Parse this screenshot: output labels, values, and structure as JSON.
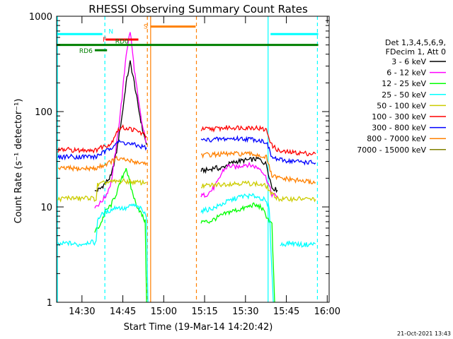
{
  "chart_data": {
    "type": "line",
    "title": "RHESSI Observing Summary Count Rates",
    "xlabel": "Start Time (19-Mar-14 14:20:42)",
    "ylabel": "Count Rate (s⁻¹ detector⁻¹)",
    "y_scale": "log",
    "ylim": [
      1,
      1000
    ],
    "xlim_minutes": [
      0,
      100
    ],
    "x_ticks": [
      {
        "label": "14:30",
        "min": 9.3
      },
      {
        "label": "14:45",
        "min": 24.3
      },
      {
        "label": "15:00",
        "min": 39.3
      },
      {
        "label": "15:15",
        "min": 54.3
      },
      {
        "label": "15:30",
        "min": 69.3
      },
      {
        "label": "15:45",
        "min": 84.3
      },
      {
        "label": "16:00",
        "min": 99.3
      }
    ],
    "y_ticks": [
      {
        "label": "1",
        "value": 1
      },
      {
        "label": "10",
        "value": 10
      },
      {
        "label": "100",
        "value": 100
      },
      {
        "label": "1000",
        "value": 1000
      }
    ],
    "legend": {
      "header": [
        "Det 1,3,4,5,6,9,",
        "FDecim 1, Att 0"
      ],
      "placement": "right"
    },
    "flags": [
      {
        "label": "N",
        "color": "#00ffff",
        "segments": [
          [
            0,
            16.8
          ],
          [
            78.5,
            96
          ]
        ],
        "value": 650
      },
      {
        "label": "F",
        "color": "#ff0000",
        "segments": [
          [
            18,
            30
          ]
        ],
        "value": 570
      },
      {
        "label": "RD0",
        "color": "#008000",
        "segments": [
          [
            0,
            96
          ]
        ],
        "value": 500
      },
      {
        "label": "RD6",
        "color": "#008000",
        "segments": [
          [
            14,
            18.5
          ]
        ],
        "value": 440
      },
      {
        "label": "S",
        "color": "#ff8000",
        "segments": [
          [
            34.5,
            51
          ]
        ],
        "value": 780
      }
    ],
    "vlines": [
      {
        "x": 0.3,
        "color": "#00ffff",
        "style": "solid"
      },
      {
        "x": 17.7,
        "color": "#00ffff",
        "style": "dashed"
      },
      {
        "x": 33.3,
        "color": "#ff8000",
        "style": "dashed"
      },
      {
        "x": 34.5,
        "color": "#ff8000",
        "style": "solid"
      },
      {
        "x": 51.3,
        "color": "#ff8000",
        "style": "dashed"
      },
      {
        "x": 77.6,
        "color": "#00ffff",
        "style": "solid"
      },
      {
        "x": 95.7,
        "color": "#00ffff",
        "style": "dashed"
      }
    ],
    "series": [
      {
        "name": "3 - 6 keV",
        "color": "#000000",
        "segments": [
          [
            [
              14.0,
              14.5
            ],
            [
              16.0,
              15.5
            ],
            [
              18.0,
              18.0
            ],
            [
              20.0,
              21.0
            ],
            [
              22.0,
              38.0
            ],
            [
              24.0,
              90.0
            ],
            [
              25.5,
              200.0
            ],
            [
              27.0,
              330.0
            ],
            [
              28.5,
              200.0
            ],
            [
              30.0,
              110.0
            ],
            [
              31.5,
              65.0
            ],
            [
              33.0,
              45.0
            ]
          ],
          [
            [
              53.0,
              24.0
            ],
            [
              56.0,
              24.5
            ],
            [
              58.0,
              26.0
            ],
            [
              60.0,
              25.0
            ],
            [
              63.0,
              28.0
            ],
            [
              66.0,
              30.0
            ],
            [
              70.0,
              31.0
            ],
            [
              74.0,
              32.0
            ],
            [
              77.0,
              28.0
            ],
            [
              79.0,
              16.0
            ],
            [
              81.0,
              15.0
            ]
          ]
        ]
      },
      {
        "name": "6 - 12 keV",
        "color": "#ff00ff",
        "segments": [
          [
            [
              14.0,
              10.0
            ],
            [
              16.0,
              11.0
            ],
            [
              18.0,
              13.0
            ],
            [
              20.0,
              18.0
            ],
            [
              22.0,
              45.0
            ],
            [
              24.0,
              140.0
            ],
            [
              25.5,
              400.0
            ],
            [
              27.0,
              700.0
            ],
            [
              28.5,
              280.0
            ],
            [
              30.0,
              130.0
            ],
            [
              31.5,
              70.0
            ],
            [
              33.0,
              47.0
            ]
          ],
          [
            [
              53.0,
              13.0
            ],
            [
              55.0,
              13.5
            ],
            [
              57.0,
              15.0
            ],
            [
              59.0,
              18.0
            ],
            [
              61.0,
              24.0
            ],
            [
              63.0,
              27.0
            ],
            [
              66.0,
              26.0
            ],
            [
              69.0,
              28.0
            ],
            [
              72.0,
              27.0
            ],
            [
              75.0,
              25.0
            ],
            [
              77.0,
              20.0
            ],
            [
              79.0,
              13.5
            ],
            [
              81.0,
              13.0
            ]
          ]
        ]
      },
      {
        "name": "12 - 25 keV",
        "color": "#00ff00",
        "segments": [
          [
            [
              14.0,
              5.5
            ],
            [
              16.0,
              6.5
            ],
            [
              18.0,
              9.0
            ],
            [
              20.0,
              10.5
            ],
            [
              22.0,
              14.0
            ],
            [
              24.0,
              20.0
            ],
            [
              25.5,
              26.0
            ],
            [
              27.0,
              17.0
            ],
            [
              29.0,
              11.0
            ],
            [
              31.0,
              8.5
            ],
            [
              32.5,
              7.0
            ],
            [
              33.0,
              1.0
            ]
          ],
          [
            [
              53.0,
              7.0
            ],
            [
              56.0,
              7.0
            ],
            [
              60.0,
              8.0
            ],
            [
              64.0,
              9.0
            ],
            [
              68.0,
              9.5
            ],
            [
              72.0,
              10.5
            ],
            [
              75.0,
              10.0
            ],
            [
              77.0,
              8.0
            ],
            [
              79.0,
              6.5
            ],
            [
              80.0,
              1.0
            ]
          ]
        ]
      },
      {
        "name": "25 - 50 keV",
        "color": "#00ffff",
        "segments": [
          [
            [
              0.5,
              4.0
            ],
            [
              4.0,
              4.2
            ],
            [
              8.0,
              4.0
            ],
            [
              12.0,
              4.3
            ],
            [
              14.5,
              4.2
            ],
            [
              15.0,
              7.5
            ],
            [
              17.0,
              8.5
            ],
            [
              19.0,
              9.0
            ],
            [
              22.0,
              10.0
            ],
            [
              25.0,
              9.5
            ],
            [
              28.0,
              10.5
            ],
            [
              31.0,
              9.5
            ],
            [
              33.0,
              8.0
            ],
            [
              33.5,
              1.0
            ]
          ],
          [
            [
              53.0,
              9.0
            ],
            [
              58.0,
              9.8
            ],
            [
              63.0,
              11.5
            ],
            [
              68.0,
              13.0
            ],
            [
              73.0,
              13.0
            ],
            [
              76.0,
              12.0
            ],
            [
              78.0,
              10.0
            ],
            [
              79.5,
              1.0
            ]
          ],
          [
            [
              82.0,
              4.0
            ],
            [
              86.0,
              4.2
            ],
            [
              90.0,
              4.0
            ],
            [
              95.0,
              4.1
            ]
          ]
        ]
      },
      {
        "name": "50 - 100 keV",
        "color": "#cccc00",
        "segments": [
          [
            [
              0.5,
              12.0
            ],
            [
              4.0,
              12.5
            ],
            [
              8.0,
              12.2
            ],
            [
              12.0,
              12.5
            ],
            [
              14.5,
              12.0
            ],
            [
              15.0,
              17.0
            ],
            [
              18.0,
              18.0
            ],
            [
              22.0,
              18.5
            ],
            [
              26.0,
              18.5
            ],
            [
              30.0,
              18.0
            ],
            [
              33.0,
              18.0
            ]
          ],
          [
            [
              53.0,
              16.5
            ],
            [
              58.0,
              17.0
            ],
            [
              63.0,
              17.5
            ],
            [
              68.0,
              17.8
            ],
            [
              73.0,
              17.5
            ],
            [
              77.0,
              16.5
            ],
            [
              79.0,
              13.5
            ],
            [
              82.0,
              12.0
            ],
            [
              88.0,
              12.2
            ],
            [
              95.0,
              12.0
            ]
          ]
        ]
      },
      {
        "name": "100 - 300 keV",
        "color": "#ff0000",
        "segments": [
          [
            [
              0.5,
              39.0
            ],
            [
              4.0,
              40.0
            ],
            [
              8.0,
              39.0
            ],
            [
              12.0,
              40.0
            ],
            [
              14.5,
              39.0
            ],
            [
              15.0,
              41.0
            ],
            [
              18.0,
              44.0
            ],
            [
              20.0,
              46.0
            ],
            [
              22.0,
              62.0
            ],
            [
              24.0,
              68.0
            ],
            [
              27.0,
              66.0
            ],
            [
              30.0,
              62.0
            ],
            [
              33.0,
              55.0
            ]
          ],
          [
            [
              53.0,
              65.0
            ],
            [
              58.0,
              66.0
            ],
            [
              63.0,
              68.0
            ],
            [
              68.0,
              68.0
            ],
            [
              73.0,
              68.0
            ],
            [
              77.0,
              64.0
            ],
            [
              79.0,
              44.0
            ],
            [
              82.0,
              38.0
            ],
            [
              88.0,
              37.0
            ],
            [
              95.0,
              36.0
            ]
          ]
        ]
      },
      {
        "name": "300 - 800 keV",
        "color": "#0000ff",
        "segments": [
          [
            [
              0.5,
              33.0
            ],
            [
              4.0,
              34.0
            ],
            [
              8.0,
              33.5
            ],
            [
              12.0,
              34.0
            ],
            [
              14.5,
              33.0
            ],
            [
              15.0,
              35.0
            ],
            [
              18.0,
              38.0
            ],
            [
              20.0,
              42.0
            ],
            [
              22.0,
              48.0
            ],
            [
              25.0,
              47.0
            ],
            [
              28.0,
              45.0
            ],
            [
              31.0,
              43.0
            ],
            [
              33.0,
              42.0
            ]
          ],
          [
            [
              53.0,
              50.0
            ],
            [
              58.0,
              51.0
            ],
            [
              63.0,
              52.0
            ],
            [
              68.0,
              52.0
            ],
            [
              73.0,
              51.0
            ],
            [
              77.0,
              48.0
            ],
            [
              79.0,
              33.0
            ],
            [
              82.0,
              31.0
            ],
            [
              88.0,
              30.0
            ],
            [
              95.0,
              29.0
            ]
          ]
        ]
      },
      {
        "name": "800 - 7000 keV",
        "color": "#ff8000",
        "segments": [
          [
            [
              0.5,
              25.0
            ],
            [
              4.0,
              25.5
            ],
            [
              8.0,
              25.0
            ],
            [
              12.0,
              25.5
            ],
            [
              14.5,
              25.0
            ],
            [
              15.0,
              26.0
            ],
            [
              18.0,
              28.0
            ],
            [
              20.0,
              30.0
            ],
            [
              22.0,
              32.0
            ],
            [
              25.0,
              31.0
            ],
            [
              28.0,
              30.0
            ],
            [
              31.0,
              29.0
            ],
            [
              33.0,
              29.0
            ]
          ],
          [
            [
              53.0,
              35.0
            ],
            [
              58.0,
              35.5
            ],
            [
              63.0,
              36.0
            ],
            [
              68.0,
              36.0
            ],
            [
              73.0,
              35.5
            ],
            [
              77.0,
              33.0
            ],
            [
              79.0,
              21.0
            ],
            [
              82.0,
              20.0
            ],
            [
              88.0,
              19.0
            ],
            [
              95.0,
              18.0
            ]
          ]
        ]
      },
      {
        "name": "7000 - 15000 keV",
        "color": "#808000",
        "segments": []
      }
    ]
  },
  "footer": {
    "date": "21-Oct-2021 13:43"
  }
}
